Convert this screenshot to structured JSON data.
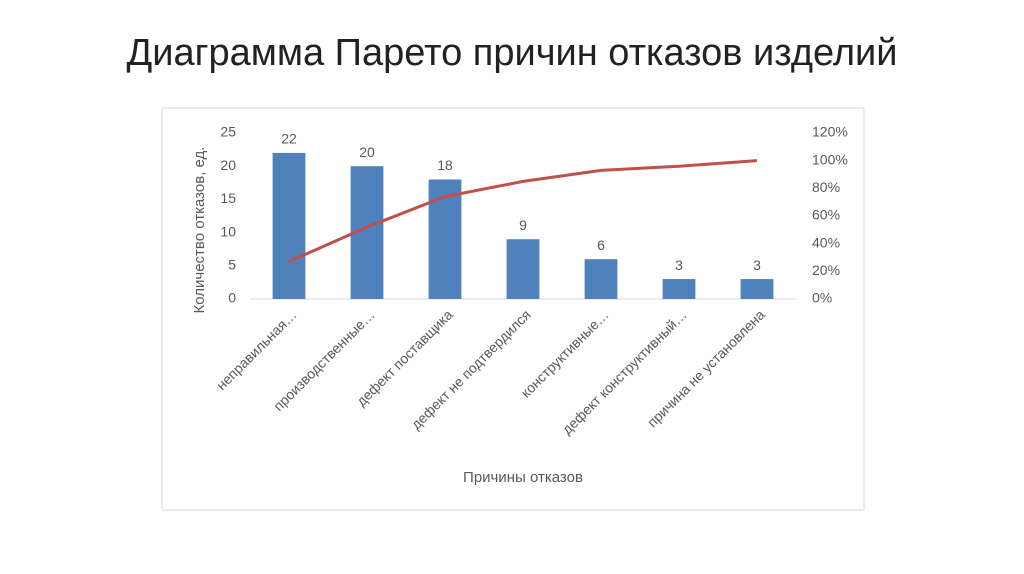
{
  "chart_data": {
    "type": "bar",
    "title": "Диаграмма Парето причин отказов изделий",
    "y_label": "Количество отказов, ед.",
    "x_label": "Причины отказов",
    "categories": [
      "неправильная…",
      "производственные…",
      "дефект поставщика",
      "дефект не подтвердился",
      "конструктивные…",
      "дефект конструктивный…",
      "причина не установлена"
    ],
    "series": [
      {
        "type": "bar",
        "color": "#4f81bd",
        "values": [
          22,
          20,
          18,
          9,
          6,
          3,
          3
        ],
        "data_labels": true
      },
      {
        "type": "line",
        "axis": "y2",
        "color": "#c0504d",
        "values": [
          27,
          52,
          74,
          85,
          93,
          96,
          100
        ]
      }
    ],
    "ylim": [
      0,
      25
    ],
    "yticks": [
      0,
      5,
      10,
      15,
      20,
      25
    ],
    "y2lim": [
      0,
      120
    ],
    "y2ticks": [
      {
        "value": 0,
        "label": "0%"
      },
      {
        "value": 20,
        "label": "20%"
      },
      {
        "value": 40,
        "label": "40%"
      },
      {
        "value": 60,
        "label": "60%"
      },
      {
        "value": 80,
        "label": "80%"
      },
      {
        "value": 100,
        "label": "100%"
      },
      {
        "value": 120,
        "label": "120%"
      }
    ],
    "grid": false
  }
}
